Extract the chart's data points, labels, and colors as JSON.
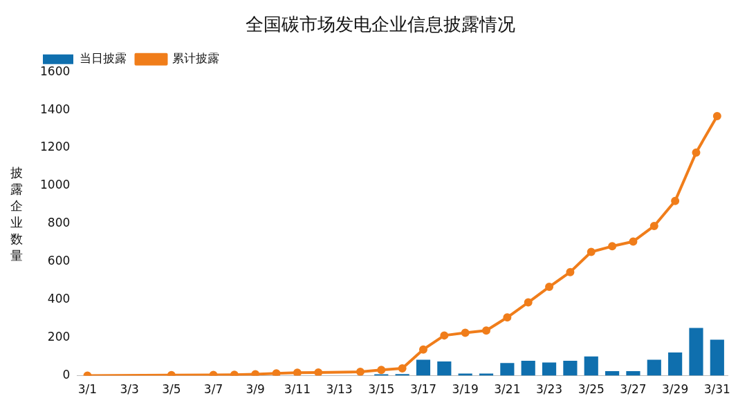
{
  "chart_data": {
    "type": "bar",
    "title": "全国碳市场发电企业信息披露情况",
    "ylabel": "披露企业数量",
    "categories": [
      "3/1",
      null,
      "3/3",
      null,
      "3/5",
      null,
      "3/7",
      null,
      "3/9",
      null,
      "3/11",
      null,
      "3/13",
      null,
      "3/15",
      null,
      "3/17",
      null,
      "3/19",
      null,
      "3/21",
      null,
      "3/23",
      null,
      "3/25",
      null,
      "3/27",
      null,
      "3/29",
      null,
      "3/31"
    ],
    "series": [
      {
        "name": "当日披露",
        "color": "#0f6fae",
        "values": [
          null,
          null,
          null,
          null,
          null,
          null,
          null,
          null,
          null,
          null,
          null,
          null,
          null,
          null,
          8,
          9,
          84,
          75,
          11,
          11,
          67,
          79,
          70,
          79,
          101,
          24,
          24,
          84,
          122,
          252,
          190
        ]
      },
      {
        "name": "累计披露",
        "type": "line",
        "color": "#f07d1a",
        "values": [
          0,
          null,
          null,
          null,
          3,
          null,
          4,
          5,
          8,
          12,
          16,
          17,
          null,
          20,
          30,
          39,
          138,
          212,
          226,
          238,
          307,
          386,
          468,
          546,
          652,
          682,
          707,
          789,
          921,
          1176,
          1368
        ]
      }
    ],
    "ylim": [
      0,
      1600
    ],
    "yticks": [
      0,
      200,
      400,
      600,
      800,
      1000,
      1200,
      1400,
      1600
    ],
    "grid": false,
    "legend": "top left",
    "marker": "circle",
    "line_style": "solid"
  }
}
